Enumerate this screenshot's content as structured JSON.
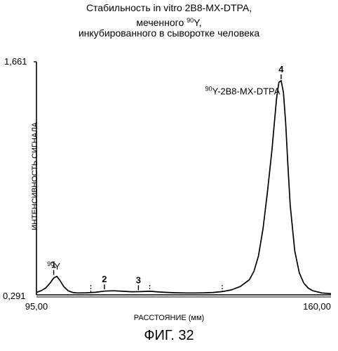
{
  "header": {
    "line1": "Стабильность in vitro 2B8-MX-DTPA,",
    "line2_prefix": "меченного ",
    "line2_sup": "90",
    "line2_suffix": "Y,",
    "line3": "инкубированного в сыворотке человека"
  },
  "figure_caption": "ФИГ. 32",
  "chart_data": {
    "type": "line",
    "title": "Стабильность in vitro 2B8-MX-DTPA, меченного 90Y, инкубированного в сыворотке человека",
    "xlabel": "РАССТОЯНИЕ (мм)",
    "ylabel": "ИНТЕНСИВНОСТЬ СИГНАЛА",
    "xlim": [
      95.0,
      160.0
    ],
    "ylim": [
      0.291,
      1.661
    ],
    "x_ticks": [
      "95,00",
      "160,00"
    ],
    "y_ticks": [
      "0,291",
      "1,661"
    ],
    "grid": false,
    "series": [
      {
        "values_x": [
          95.0,
          96.0,
          97.0,
          98.0,
          98.8,
          99.5,
          100.2,
          101.0,
          102.0,
          103.0,
          104.0,
          106.0,
          108.0,
          110.0,
          112.0,
          114.0,
          116.0,
          118.0,
          120.0,
          122.0,
          124.0,
          126.0,
          128.0,
          130.0,
          132.0,
          134.0,
          136.0,
          138.0,
          140.0,
          142.0,
          143.0,
          144.0,
          145.0,
          146.0,
          147.0,
          147.5,
          148.0,
          148.5,
          149.0,
          149.5,
          150.0,
          150.5,
          151.0,
          152.0,
          153.0,
          154.0,
          155.0,
          156.0,
          158.0,
          160.0
        ],
        "values_y": [
          0.305,
          0.315,
          0.33,
          0.36,
          0.39,
          0.4,
          0.375,
          0.34,
          0.315,
          0.305,
          0.302,
          0.303,
          0.306,
          0.313,
          0.315,
          0.312,
          0.309,
          0.31,
          0.312,
          0.308,
          0.305,
          0.303,
          0.302,
          0.302,
          0.303,
          0.305,
          0.31,
          0.32,
          0.34,
          0.38,
          0.43,
          0.52,
          0.68,
          0.9,
          1.15,
          1.3,
          1.45,
          1.54,
          1.55,
          1.48,
          1.3,
          1.05,
          0.82,
          0.55,
          0.42,
          0.36,
          0.33,
          0.315,
          0.302,
          0.298
        ]
      }
    ],
    "peaks": [
      {
        "label": "1",
        "x": 98.8,
        "y": 0.4
      },
      {
        "label": "2",
        "x": 110.0,
        "y": 0.315
      },
      {
        "label": "3",
        "x": 117.5,
        "y": 0.31
      },
      {
        "label": "4",
        "x": 149.0,
        "y": 1.55
      }
    ],
    "annotations": [
      {
        "sup": "90",
        "text": "Y",
        "x": 98.8,
        "y": 0.44
      },
      {
        "sup": "90",
        "text": "Y-2B8-MX-DTPA",
        "x": 140.5,
        "y": 1.47
      }
    ]
  }
}
